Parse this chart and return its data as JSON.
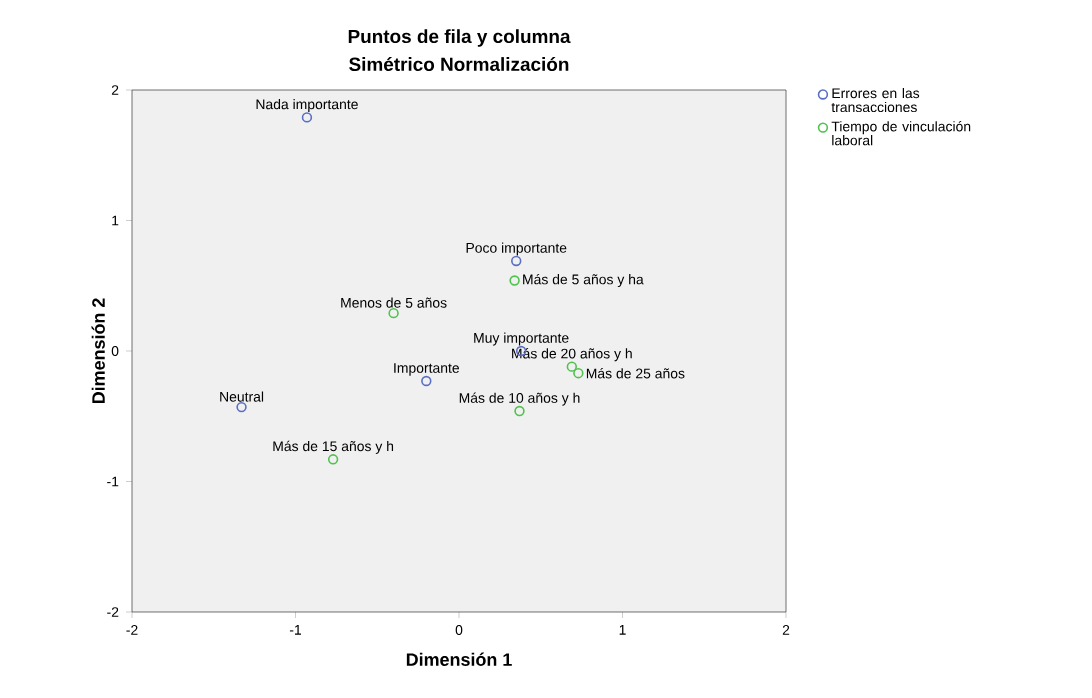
{
  "chart_data": {
    "type": "scatter",
    "title": "Puntos de fila y columna",
    "subtitle": "Simétrico Normalización",
    "xlabel": "Dimensión 1",
    "ylabel": "Dimensión 2",
    "xlim": [
      -2,
      2
    ],
    "ylim": [
      -2,
      2
    ],
    "xticks": [
      -2,
      -1,
      0,
      1,
      2
    ],
    "yticks": [
      -2,
      -1,
      0,
      1,
      2
    ],
    "grid": false,
    "legend": "top right",
    "marker": "circle",
    "series": [
      {
        "name": "Errores en las transacciones",
        "color": "#5a6fc4",
        "x": [
          -0.93,
          0.35,
          0.38,
          -0.2,
          -1.33
        ],
        "values": [
          1.79,
          0.69,
          0.0,
          -0.23,
          -0.43
        ]
      },
      {
        "name": "Tiempo de vinculación laboral",
        "color": "#4fc24f",
        "x": [
          0.34,
          -0.4,
          0.69,
          0.73,
          0.37,
          -0.77
        ],
        "values": [
          0.54,
          0.29,
          -0.12,
          -0.17,
          -0.46,
          -0.83
        ]
      }
    ],
    "annotations": [
      {
        "text": "Nada importante",
        "x": -0.93,
        "y": 1.79
      },
      {
        "text": "Poco importante",
        "x": 0.35,
        "y": 0.69
      },
      {
        "text": "Muy importante",
        "x": 0.38,
        "y": 0.0
      },
      {
        "text": "Importante",
        "x": -0.2,
        "y": -0.23
      },
      {
        "text": "Neutral",
        "x": -1.33,
        "y": -0.43
      },
      {
        "text": "Más de 5 años y ha",
        "x": 0.34,
        "y": 0.54
      },
      {
        "text": "Menos de 5 años",
        "x": -0.4,
        "y": 0.29
      },
      {
        "text": "Más de 20 años y h",
        "x": 0.69,
        "y": -0.12
      },
      {
        "text": "Más de 25 años",
        "x": 0.73,
        "y": -0.17
      },
      {
        "text": "Más de 10 años y h",
        "x": 0.37,
        "y": -0.46
      },
      {
        "text": "Más de 15 años y h",
        "x": -0.77,
        "y": -0.83
      }
    ]
  }
}
